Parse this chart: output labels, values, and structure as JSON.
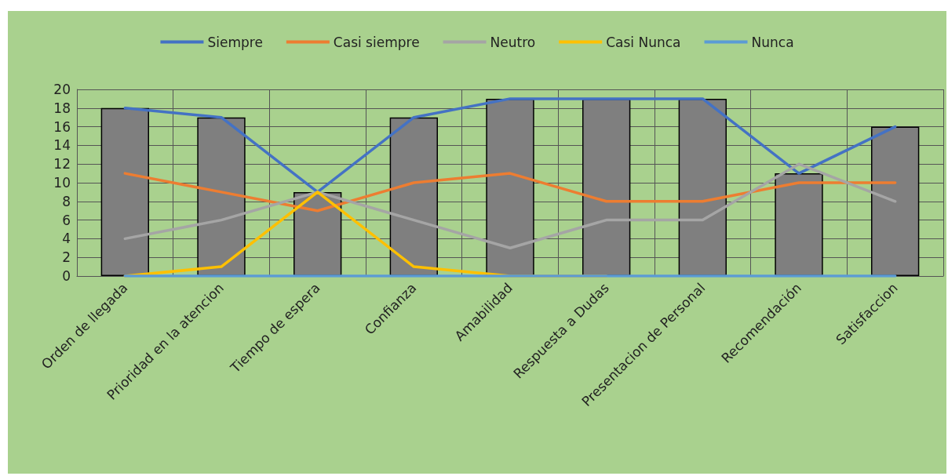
{
  "chart_data": {
    "type": "line",
    "categories": [
      "Orden de llegada",
      "Prioridad en la atencion",
      "Tiempo de espera",
      "Confianza",
      "Amabilidad",
      "Respuesta a Dudas",
      "Presentacion de Personal",
      "Recomendación",
      "Satisfaccion"
    ],
    "series": [
      {
        "type": "bar",
        "color": "#7f7f7f",
        "values": [
          18,
          17,
          9,
          17,
          19,
          19,
          19,
          11,
          16
        ]
      },
      {
        "name": "Siempre",
        "color": "#4472c4",
        "values": [
          18,
          17,
          9,
          17,
          19,
          19,
          19,
          11,
          16
        ]
      },
      {
        "name": "Casi siempre",
        "color": "#ed7d31",
        "values": [
          11,
          9,
          7,
          10,
          11,
          8,
          8,
          10,
          10
        ]
      },
      {
        "name": "Neutro",
        "color": "#a5a5a5",
        "values": [
          4,
          6,
          9,
          6,
          3,
          6,
          6,
          12,
          8
        ]
      },
      {
        "name": "Casi Nunca",
        "color": "#ffc000",
        "values": [
          0,
          1,
          9,
          1,
          0,
          0,
          null,
          null,
          null
        ]
      },
      {
        "name": "Nunca",
        "color": "#5b9bd5",
        "values": [
          0,
          0,
          0,
          0,
          0,
          0,
          0,
          0,
          0
        ]
      }
    ],
    "ylim": [
      0,
      20
    ],
    "yticks": [
      0,
      2,
      4,
      6,
      8,
      10,
      12,
      14,
      16,
      18,
      20
    ],
    "grid": true,
    "legend": "top",
    "marker": "none",
    "line_style": "solid"
  }
}
